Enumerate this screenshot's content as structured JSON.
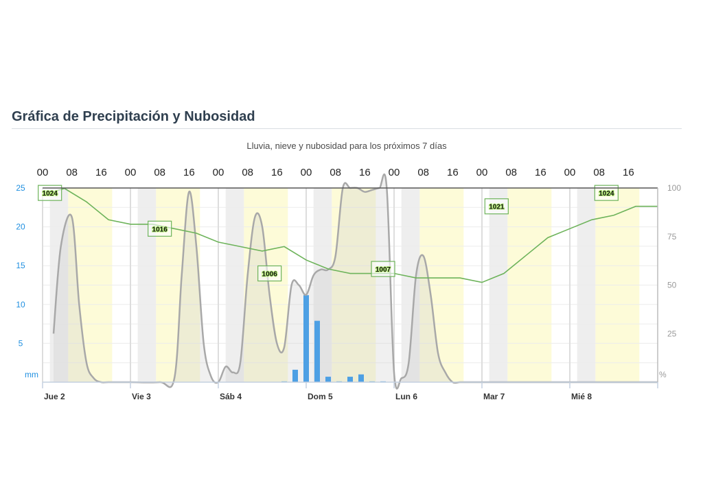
{
  "header": {
    "title": "Gráfica de Precipitación y Nubosidad"
  },
  "chart_data": {
    "type": "combo",
    "subtitle": "Lluvia, nieve y nubosidad para los próximos 7 días",
    "hour_labels": [
      "00",
      "08",
      "16",
      "00",
      "08",
      "16",
      "00",
      "08",
      "16",
      "00",
      "08",
      "16",
      "00",
      "08",
      "16",
      "00",
      "08",
      "16",
      "00",
      "08",
      "16"
    ],
    "day_labels": [
      "Jue 2",
      "Vie 3",
      "Sáb 4",
      "Dom 5",
      "Lun 6",
      "Mar 7",
      "Mié 8"
    ],
    "left_axis": {
      "unit": "mm",
      "ticks": [
        "25",
        "20",
        "15",
        "10",
        "5"
      ],
      "ylim": [
        0,
        25
      ]
    },
    "right_axis": {
      "unit": "%",
      "ticks": [
        "100",
        "75",
        "50",
        "25"
      ],
      "ylim": [
        0,
        100
      ]
    },
    "colors": {
      "precipitation": "#1e90ef",
      "cloud": "#a8a8a8",
      "pressure": "#6db35a",
      "night": "#eeeeee",
      "day": "#fdfbd8",
      "left_axis": "#1f8fe0"
    },
    "precipitation_mm": {
      "x_hours": [
        66,
        69,
        72,
        75,
        78,
        81,
        84,
        87,
        90,
        93
      ],
      "values": [
        0.1,
        1.6,
        11.2,
        7.9,
        0.7,
        0.1,
        0.7,
        1.0,
        0.1,
        0.1
      ]
    },
    "cloud_cover_pct": {
      "x_hours": [
        3,
        5,
        8,
        10,
        12,
        14,
        16,
        18,
        24,
        32,
        36,
        38,
        40,
        42,
        44,
        46,
        48,
        50,
        52,
        54,
        56,
        58,
        60,
        62,
        64,
        66,
        68,
        70,
        72,
        74,
        76,
        78,
        80,
        82,
        84,
        86,
        88,
        90,
        92,
        94,
        96,
        98,
        100,
        102,
        104,
        106,
        108,
        110,
        112,
        114,
        116,
        118,
        120,
        168
      ],
      "values": [
        25,
        70,
        85,
        40,
        10,
        2,
        0,
        0,
        0,
        0,
        2,
        55,
        98,
        70,
        20,
        3,
        0,
        8,
        5,
        10,
        55,
        85,
        80,
        45,
        20,
        18,
        50,
        50,
        45,
        55,
        58,
        58,
        65,
        100,
        100,
        100,
        98,
        99,
        100,
        100,
        5,
        2,
        10,
        55,
        65,
        45,
        15,
        5,
        0,
        0,
        0,
        0,
        0,
        0
      ]
    },
    "pressure_hpa": {
      "labels": [
        "1024",
        "1016",
        "1006",
        "1007",
        "1021",
        "1024"
      ],
      "x_hours": [
        0,
        6,
        12,
        18,
        24,
        30,
        36,
        42,
        48,
        54,
        60,
        66,
        72,
        78,
        84,
        90,
        96,
        102,
        108,
        114,
        120,
        126,
        132,
        138,
        144,
        150,
        156,
        162,
        168
      ],
      "values": [
        1024,
        1025,
        1022,
        1018,
        1017,
        1017,
        1016,
        1015,
        1013,
        1012,
        1011,
        1012,
        1009,
        1007,
        1006,
        1006,
        1006,
        1005,
        1005,
        1005,
        1004,
        1006,
        1010,
        1014,
        1016,
        1018,
        1019,
        1021,
        1021
      ]
    }
  }
}
